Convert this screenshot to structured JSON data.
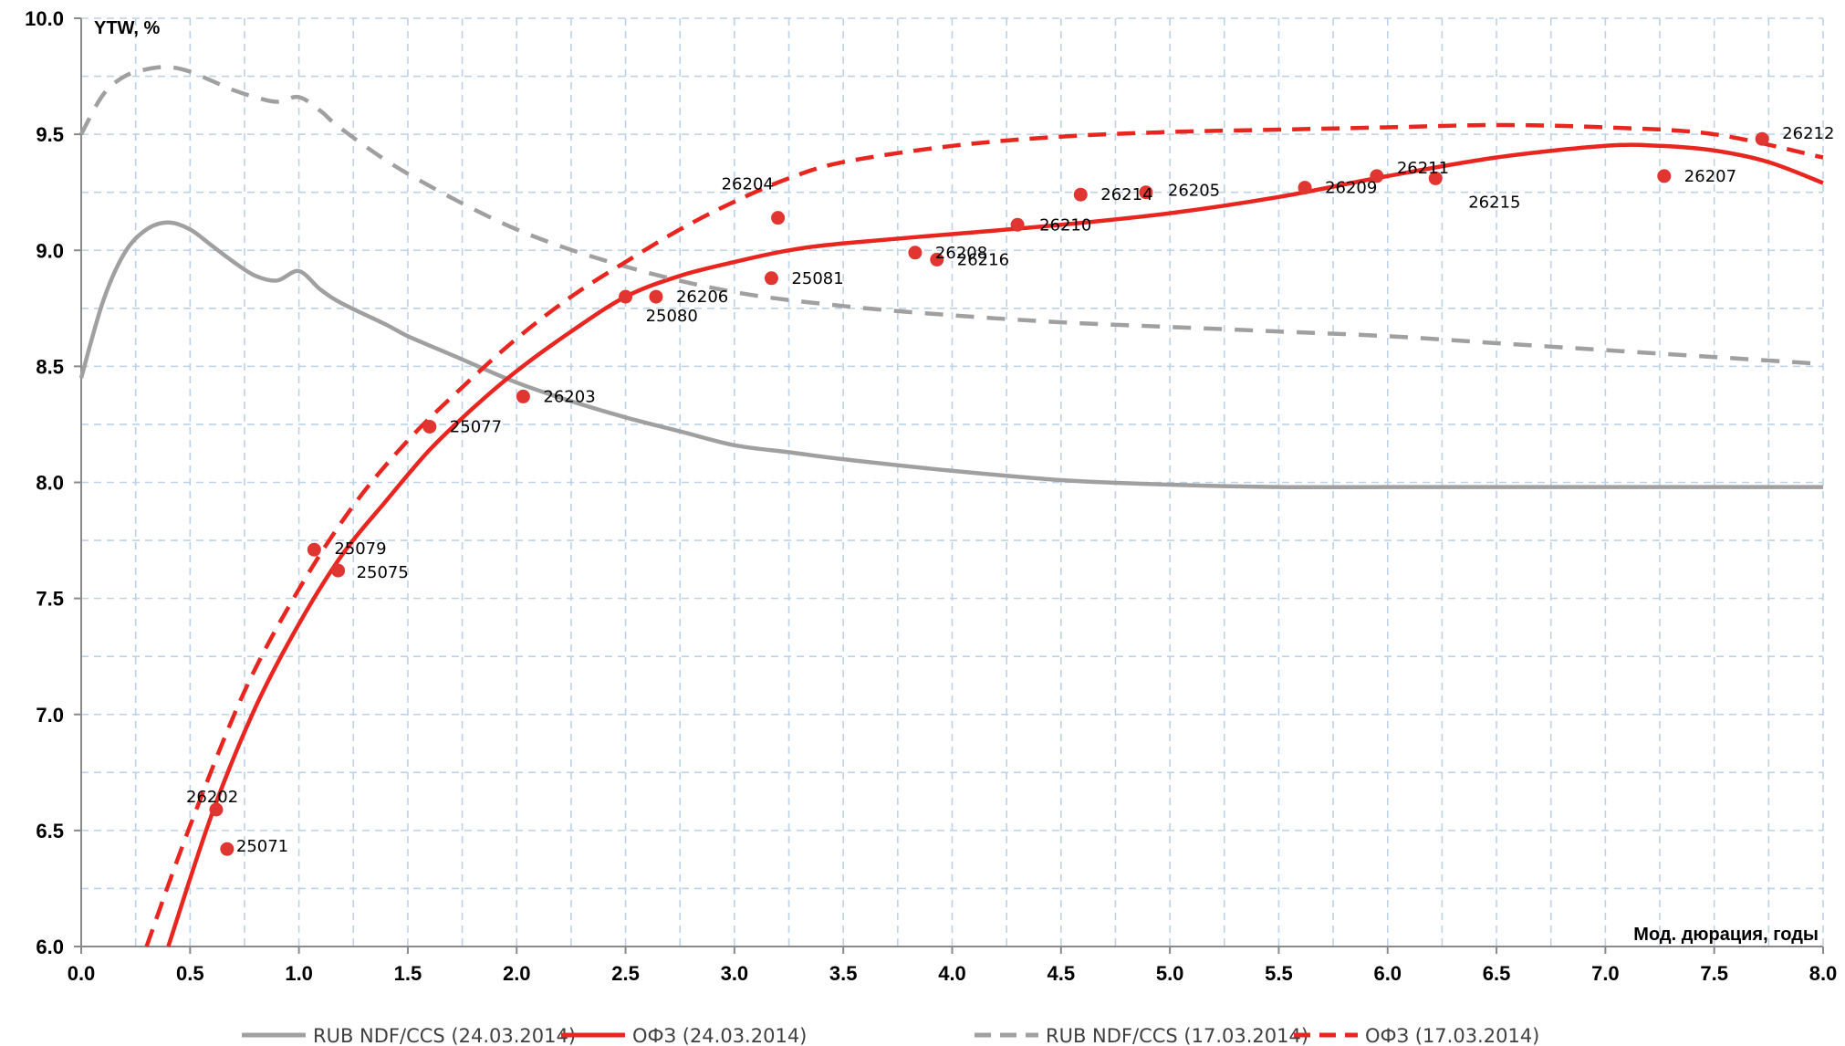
{
  "chart_data": {
    "type": "line",
    "xlabel": "Мод. дюрация, годы",
    "ylabel": "YTW, %",
    "xlim": [
      0,
      8
    ],
    "ylim": [
      6,
      10
    ],
    "x_ticks": [
      "0.0",
      "0.5",
      "1.0",
      "1.5",
      "2.0",
      "2.5",
      "3.0",
      "3.5",
      "4.0",
      "4.5",
      "5.0",
      "5.5",
      "6.0",
      "6.5",
      "7.0",
      "7.5",
      "8.0"
    ],
    "y_ticks": [
      "6.0",
      "6.5",
      "7.0",
      "7.5",
      "8.0",
      "8.5",
      "9.0",
      "9.5",
      "10.0"
    ],
    "grid": true,
    "legend_position": "bottom",
    "series": [
      {
        "name": "RUB NDF/CCS (24.03.2014)",
        "color": "#a0a0a0",
        "dash": "solid",
        "points": [
          [
            0,
            8.45
          ],
          [
            0.1,
            8.78
          ],
          [
            0.2,
            8.99
          ],
          [
            0.3,
            9.09
          ],
          [
            0.4,
            9.12
          ],
          [
            0.5,
            9.09
          ],
          [
            0.6,
            9.02
          ],
          [
            0.7,
            8.95
          ],
          [
            0.8,
            8.89
          ],
          [
            0.9,
            8.87
          ],
          [
            1.0,
            8.91
          ],
          [
            1.1,
            8.83
          ],
          [
            1.2,
            8.77
          ],
          [
            1.4,
            8.68
          ],
          [
            1.5,
            8.63
          ],
          [
            1.7,
            8.55
          ],
          [
            2.0,
            8.43
          ],
          [
            2.25,
            8.35
          ],
          [
            2.5,
            8.28
          ],
          [
            2.75,
            8.22
          ],
          [
            3.0,
            8.16
          ],
          [
            3.25,
            8.13
          ],
          [
            3.5,
            8.1
          ],
          [
            4.0,
            8.05
          ],
          [
            4.5,
            8.01
          ],
          [
            5.0,
            7.99
          ],
          [
            5.5,
            7.98
          ],
          [
            6.0,
            7.98
          ],
          [
            6.5,
            7.98
          ],
          [
            7.0,
            7.98
          ],
          [
            7.5,
            7.98
          ],
          [
            7.8,
            7.98
          ],
          [
            8.0,
            7.98
          ]
        ]
      },
      {
        "name": "ОФЗ (24.03.2014)",
        "color": "#e8251f",
        "dash": "solid",
        "points": [
          [
            0.4,
            6.0
          ],
          [
            0.6,
            6.57
          ],
          [
            0.8,
            7.03
          ],
          [
            1.0,
            7.39
          ],
          [
            1.2,
            7.69
          ],
          [
            1.4,
            7.92
          ],
          [
            1.6,
            8.14
          ],
          [
            1.8,
            8.32
          ],
          [
            2.0,
            8.48
          ],
          [
            2.25,
            8.65
          ],
          [
            2.5,
            8.8
          ],
          [
            2.75,
            8.89
          ],
          [
            3.0,
            8.95
          ],
          [
            3.25,
            9.0
          ],
          [
            3.5,
            9.03
          ],
          [
            4.0,
            9.07
          ],
          [
            4.5,
            9.11
          ],
          [
            5.0,
            9.16
          ],
          [
            5.5,
            9.23
          ],
          [
            6.0,
            9.32
          ],
          [
            6.5,
            9.4
          ],
          [
            7.0,
            9.45
          ],
          [
            7.25,
            9.45
          ],
          [
            7.5,
            9.43
          ],
          [
            7.75,
            9.38
          ],
          [
            8.0,
            9.29
          ]
        ]
      },
      {
        "name": "RUB NDF/CCS (17.03.2014)",
        "color": "#a0a0a0",
        "dash": "dashed",
        "points": [
          [
            0,
            9.5
          ],
          [
            0.1,
            9.67
          ],
          [
            0.2,
            9.75
          ],
          [
            0.3,
            9.78
          ],
          [
            0.4,
            9.79
          ],
          [
            0.5,
            9.77
          ],
          [
            0.6,
            9.73
          ],
          [
            0.7,
            9.69
          ],
          [
            0.8,
            9.66
          ],
          [
            0.9,
            9.64
          ],
          [
            1.0,
            9.66
          ],
          [
            1.1,
            9.6
          ],
          [
            1.2,
            9.52
          ],
          [
            1.5,
            9.33
          ],
          [
            2.0,
            9.09
          ],
          [
            2.5,
            8.93
          ],
          [
            3.0,
            8.82
          ],
          [
            3.5,
            8.76
          ],
          [
            4.0,
            8.72
          ],
          [
            4.5,
            8.69
          ],
          [
            5.0,
            8.67
          ],
          [
            5.5,
            8.65
          ],
          [
            6.0,
            8.63
          ],
          [
            6.5,
            8.6
          ],
          [
            7.0,
            8.57
          ],
          [
            7.5,
            8.54
          ],
          [
            8.0,
            8.51
          ]
        ]
      },
      {
        "name": "ОФЗ (17.03.2014)",
        "color": "#e8251f",
        "dash": "dashed",
        "points": [
          [
            0.3,
            6.0
          ],
          [
            0.5,
            6.52
          ],
          [
            0.75,
            7.1
          ],
          [
            1.0,
            7.54
          ],
          [
            1.25,
            7.9
          ],
          [
            1.5,
            8.18
          ],
          [
            1.75,
            8.41
          ],
          [
            2.0,
            8.62
          ],
          [
            2.25,
            8.8
          ],
          [
            2.5,
            8.95
          ],
          [
            2.75,
            9.09
          ],
          [
            3.0,
            9.21
          ],
          [
            3.25,
            9.31
          ],
          [
            3.5,
            9.38
          ],
          [
            4.0,
            9.45
          ],
          [
            4.5,
            9.49
          ],
          [
            5.0,
            9.51
          ],
          [
            5.5,
            9.52
          ],
          [
            6.0,
            9.53
          ],
          [
            6.5,
            9.54
          ],
          [
            7.0,
            9.53
          ],
          [
            7.5,
            9.5
          ],
          [
            8.0,
            9.4
          ]
        ]
      }
    ],
    "scatter": {
      "color": "#e03530",
      "points": [
        {
          "label": "26202",
          "x": 0.62,
          "y": 6.59
        },
        {
          "label": "25071",
          "x": 0.67,
          "y": 6.42
        },
        {
          "label": "25079",
          "x": 1.07,
          "y": 7.71
        },
        {
          "label": "25075",
          "x": 1.18,
          "y": 7.62
        },
        {
          "label": "25077",
          "x": 1.6,
          "y": 8.24
        },
        {
          "label": "26203",
          "x": 2.03,
          "y": 8.37
        },
        {
          "label": "25080",
          "x": 2.5,
          "y": 8.8
        },
        {
          "label": "26206",
          "x": 2.64,
          "y": 8.8
        },
        {
          "label": "25081",
          "x": 3.17,
          "y": 8.88
        },
        {
          "label": "26204",
          "x": 3.2,
          "y": 9.14
        },
        {
          "label": "26208",
          "x": 3.83,
          "y": 8.99
        },
        {
          "label": "26216",
          "x": 3.93,
          "y": 8.96
        },
        {
          "label": "26210",
          "x": 4.3,
          "y": 9.11
        },
        {
          "label": "26214",
          "x": 4.59,
          "y": 9.24
        },
        {
          "label": "26205",
          "x": 4.89,
          "y": 9.25
        },
        {
          "label": "26209",
          "x": 5.62,
          "y": 9.27
        },
        {
          "label": "26211",
          "x": 5.95,
          "y": 9.32
        },
        {
          "label": "26215",
          "x": 6.22,
          "y": 9.31
        },
        {
          "label": "26207",
          "x": 7.27,
          "y": 9.32
        },
        {
          "label": "26212",
          "x": 7.72,
          "y": 9.48
        }
      ]
    }
  }
}
